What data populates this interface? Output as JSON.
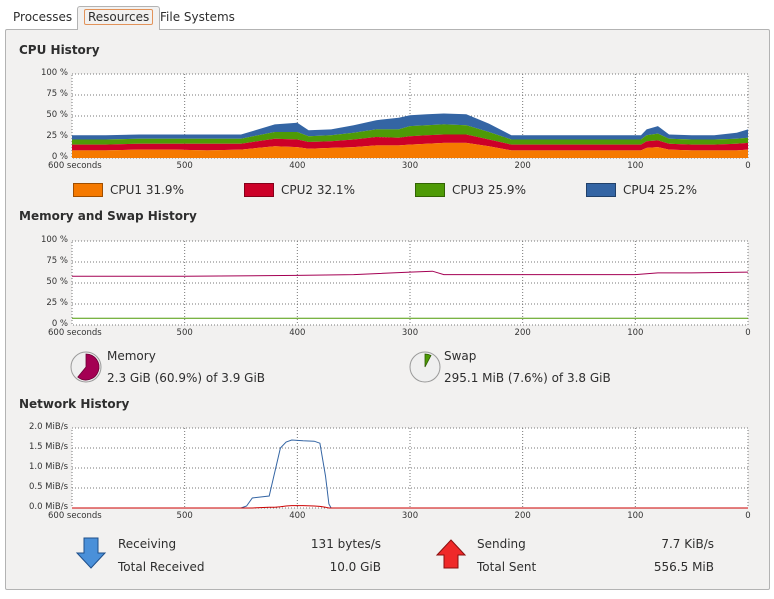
{
  "tabs": [
    {
      "label": "Processes"
    },
    {
      "label": "Resources"
    },
    {
      "label": "File Systems"
    }
  ],
  "active_tab": "Resources",
  "cpu": {
    "title": "CPU History",
    "y_ticks": [
      "100 %",
      "75 %",
      "50 %",
      "25 %",
      "0 %"
    ],
    "x_ticks": [
      "600 seconds",
      "500",
      "400",
      "300",
      "200",
      "100",
      "0"
    ],
    "legend": [
      {
        "label": "CPU1  31.9%",
        "color": "#f57900"
      },
      {
        "label": "CPU2  32.1%",
        "color": "#cc0028"
      },
      {
        "label": "CPU3  25.9%",
        "color": "#4e9a06"
      },
      {
        "label": "CPU4  25.2%",
        "color": "#3465a4"
      }
    ]
  },
  "memory": {
    "title": "Memory and Swap History",
    "y_ticks": [
      "100 %",
      "75 %",
      "50 %",
      "25 %",
      "0 %"
    ],
    "x_ticks": [
      "600 seconds",
      "500",
      "400",
      "300",
      "200",
      "100",
      "0"
    ],
    "memory_label": "Memory",
    "memory_value": "2.3 GiB (60.9%) of 3.9 GiB",
    "memory_fraction": 0.609,
    "swap_label": "Swap",
    "swap_value": "295.1 MiB (7.6%) of 3.8 GiB",
    "swap_fraction": 0.076,
    "memory_color": "#a40053",
    "swap_color": "#4e9a06"
  },
  "network": {
    "title": "Network History",
    "y_ticks": [
      "2.0 MiB/s",
      "1.5 MiB/s",
      "1.0 MiB/s",
      "0.5 MiB/s",
      "0.0 MiB/s"
    ],
    "x_ticks": [
      "600 seconds",
      "500",
      "400",
      "300",
      "200",
      "100",
      "0"
    ],
    "receiving_label": "Receiving",
    "receiving_value": "131 bytes/s",
    "total_received_label": "Total Received",
    "total_received_value": "10.0 GiB",
    "sending_label": "Sending",
    "sending_value": "7.7 KiB/s",
    "total_sent_label": "Total Sent",
    "total_sent_value": "556.5 MiB",
    "receive_color": "#3465a4",
    "send_color": "#cc0000"
  },
  "chart_data": [
    {
      "type": "area",
      "x": [
        600,
        570,
        540,
        510,
        480,
        450,
        420,
        400,
        390,
        370,
        350,
        330,
        310,
        300,
        285,
        270,
        250,
        230,
        210,
        200,
        170,
        140,
        110,
        95,
        90,
        80,
        70,
        50,
        30,
        10,
        0
      ],
      "series": [
        {
          "name": "CPU1",
          "values": [
            9,
            9,
            10,
            10,
            9,
            10,
            14,
            13,
            11,
            12,
            13,
            15,
            15,
            16,
            17,
            18,
            18,
            14,
            9,
            9,
            9,
            9,
            9,
            9,
            12,
            13,
            10,
            9,
            9,
            9,
            10
          ]
        },
        {
          "name": "CPU2",
          "values": [
            7,
            7,
            7,
            7,
            8,
            7,
            9,
            9,
            8,
            8,
            9,
            10,
            9,
            10,
            10,
            10,
            10,
            8,
            7,
            7,
            7,
            7,
            7,
            7,
            8,
            8,
            7,
            7,
            7,
            8,
            8
          ]
        },
        {
          "name": "CPU3",
          "values": [
            6,
            6,
            6,
            6,
            6,
            6,
            8,
            9,
            7,
            7,
            8,
            9,
            10,
            12,
            12,
            12,
            11,
            9,
            6,
            6,
            6,
            6,
            6,
            6,
            7,
            8,
            6,
            6,
            6,
            6,
            6
          ]
        },
        {
          "name": "CPU4",
          "values": [
            5,
            5,
            5,
            5,
            5,
            5,
            9,
            11,
            7,
            7,
            9,
            11,
            14,
            13,
            13,
            13,
            13,
            10,
            5,
            5,
            5,
            5,
            5,
            5,
            7,
            9,
            5,
            5,
            5,
            7,
            10
          ]
        }
      ],
      "ylim": [
        0,
        100
      ],
      "title": "CPU History"
    },
    {
      "type": "line",
      "x": [
        600,
        500,
        400,
        350,
        300,
        280,
        270,
        250,
        200,
        150,
        100,
        80,
        50,
        0
      ],
      "series": [
        {
          "name": "Memory",
          "values": [
            58,
            58,
            59,
            60,
            63,
            64,
            60,
            60,
            60,
            60,
            60,
            62,
            62,
            63
          ]
        },
        {
          "name": "Swap",
          "values": [
            8,
            8,
            8,
            8,
            8,
            8,
            8,
            8,
            8,
            8,
            8,
            8,
            8,
            8
          ]
        }
      ],
      "ylim": [
        0,
        100
      ],
      "title": "Memory and Swap History"
    },
    {
      "type": "line",
      "x": [
        600,
        450,
        445,
        440,
        425,
        420,
        415,
        410,
        405,
        395,
        385,
        380,
        375,
        372,
        370,
        365,
        0
      ],
      "series": [
        {
          "name": "Receiving",
          "values": [
            0.0,
            0.0,
            0.05,
            0.25,
            0.3,
            0.9,
            1.5,
            1.65,
            1.7,
            1.68,
            1.67,
            1.62,
            0.8,
            0.1,
            0.0,
            0.0,
            0.0
          ]
        },
        {
          "name": "Sending",
          "values": [
            0.0,
            0.0,
            0.0,
            0.0,
            0.02,
            0.02,
            0.03,
            0.05,
            0.06,
            0.06,
            0.05,
            0.04,
            0.02,
            0.0,
            0.0,
            0.0,
            0.0
          ]
        }
      ],
      "ylim": [
        0,
        2.0
      ],
      "title": "Network History"
    }
  ]
}
